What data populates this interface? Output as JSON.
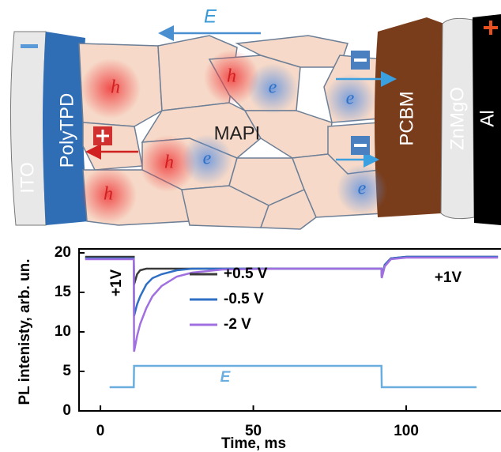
{
  "diagram": {
    "field_label": "E",
    "layers": [
      "ITO",
      "PolyTPD",
      "MAPI",
      "PCBM",
      "ZnMgO",
      "Al"
    ],
    "carriers": [
      "h",
      "h",
      "e",
      "e",
      "h",
      "e",
      "h",
      "e"
    ]
  },
  "chart_data": {
    "type": "line",
    "y_label": "PL intenisty, arb. un.",
    "x_label": "Time, ms",
    "annotations": [
      "+1V",
      "+1V"
    ],
    "x": [
      -5,
      3,
      10.9,
      11,
      12,
      13,
      15,
      17,
      20,
      25,
      30,
      40,
      60,
      91.9,
      92,
      93,
      95,
      100,
      123,
      130
    ],
    "series": [
      {
        "name": "+0.5 V",
        "color": "#3a3a3a",
        "values": [
          19.5,
          19.5,
          19.5,
          16,
          17.3,
          17.8,
          18,
          18,
          18,
          18,
          18,
          18,
          18,
          18,
          17,
          18.5,
          19.3,
          19.5,
          19.5,
          19.5
        ]
      },
      {
        "name": "-0.5 V",
        "color": "#2f6fc4",
        "values": [
          19.3,
          19.3,
          19.3,
          12,
          13.5,
          14.5,
          16,
          16.8,
          17.3,
          17.8,
          18,
          18,
          18,
          18,
          17,
          18.5,
          19.3,
          19.5,
          19.5,
          19.5
        ]
      },
      {
        "name": "-2 V",
        "color": "#a070e0",
        "values": [
          19.2,
          19.2,
          19.2,
          7.5,
          9.5,
          11,
          13,
          14.5,
          15.8,
          17,
          17.5,
          17.9,
          18,
          18,
          16.8,
          18.3,
          19.2,
          19.4,
          19.4,
          19.4
        ]
      },
      {
        "name": "E",
        "color": "#6aaee0",
        "values": [
          null,
          3,
          3,
          5.7,
          5.7,
          5.7,
          5.7,
          5.7,
          5.7,
          5.7,
          5.7,
          5.7,
          5.7,
          5.7,
          3,
          3,
          3,
          3,
          3,
          null
        ]
      }
    ],
    "xlim": [
      -7,
      131
    ],
    "ylim": [
      0,
      20.5
    ],
    "xticks": [
      0,
      50,
      100
    ],
    "yticks": [
      0,
      5,
      10,
      15,
      20
    ],
    "grid": false
  }
}
